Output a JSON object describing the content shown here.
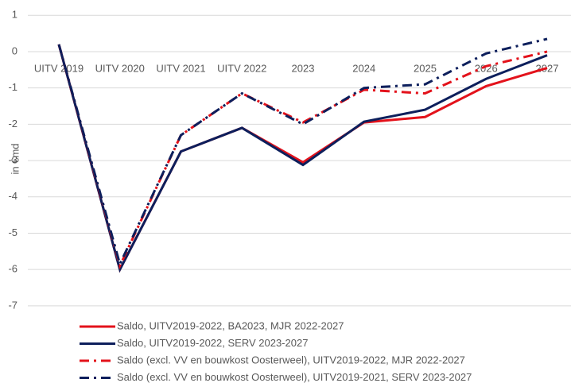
{
  "chart_data": {
    "type": "line",
    "y_label": "in €md",
    "categories": [
      "UITV 2019",
      "UITV 2020",
      "UITV 2021",
      "UITV 2022",
      "2023",
      "2024",
      "2025",
      "2026",
      "2027"
    ],
    "series": [
      {
        "name": "Saldo, UITV2019-2022, BA2023, MJR 2022-2027",
        "color": "#e3121b",
        "style": "solid",
        "values": [
          0.2,
          -6.0,
          -2.75,
          -2.1,
          -3.05,
          -1.95,
          -1.8,
          -0.95,
          -0.45
        ]
      },
      {
        "name": "Saldo, UITV2019-2022, SERV 2023-2027",
        "color": "#0d1f5c",
        "style": "solid",
        "values": [
          0.2,
          -6.0,
          -2.75,
          -2.1,
          -3.12,
          -1.93,
          -1.6,
          -0.75,
          -0.1
        ]
      },
      {
        "name": "Saldo (excl. VV en bouwkost Oosterweel), UITV2019-2022, MJR 2022-2027",
        "color": "#e3121b",
        "style": "dashdot",
        "values": [
          0.2,
          -5.9,
          -2.3,
          -1.15,
          -1.95,
          -1.05,
          -1.15,
          -0.4,
          0.0
        ]
      },
      {
        "name": "Saldo (excl. VV en bouwkost Oosterweel), UITV2019-2021, SERV 2023-2027",
        "color": "#0d1f5c",
        "style": "dashdot",
        "values": [
          0.2,
          -5.85,
          -2.3,
          -1.15,
          -2.0,
          -1.0,
          -0.9,
          -0.05,
          0.35
        ]
      }
    ],
    "ylim": [
      -7.2,
      1.4
    ],
    "yticks": [
      1,
      0,
      -1,
      -2,
      -3,
      -4,
      -5,
      -6,
      -7
    ],
    "grid": true
  }
}
